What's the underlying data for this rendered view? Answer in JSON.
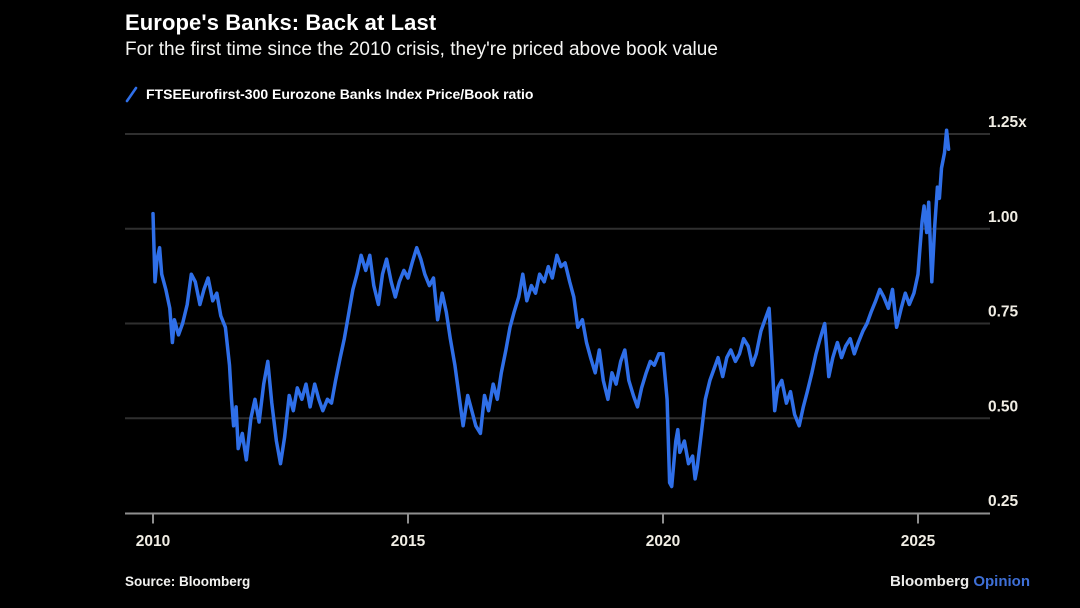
{
  "header": {
    "title": "Europe's Banks: Back at Last",
    "subtitle": "For the first time since the 2010 crisis, they're priced above book value"
  },
  "legend": {
    "series_label": "FTSEEurofirst-300 Eurozone Banks Index Price/Book ratio",
    "swatch_color": "#2F6FE8"
  },
  "footer": {
    "source": "Source: Bloomberg",
    "brand": "Bloomberg ",
    "brand_suffix": "Opinion",
    "brand_suffix_color": "#3E6FD6"
  },
  "colors": {
    "background": "#000000",
    "line": "#2F6FE8",
    "gridline": "#2F2F2F",
    "axis": "#8F8F8F",
    "tick_text": "#F0EDE4",
    "title_text": "#FFFFFF"
  },
  "chart_data": {
    "type": "line",
    "title": "Europe's Banks: Back at Last",
    "subtitle": "For the first time since the 2010 crisis, they're priced above book value",
    "xlabel": "",
    "ylabel": "Price/Book ratio",
    "unit_suffix": "x",
    "grid": "horizontal",
    "legend_position": "top-left",
    "xlim": [
      2009.45,
      2026.4
    ],
    "ylim": [
      0.25,
      1.25
    ],
    "x_ticks": [
      {
        "value": 2010,
        "label": "2010"
      },
      {
        "value": 2015,
        "label": "2015"
      },
      {
        "value": 2020,
        "label": "2020"
      },
      {
        "value": 2025,
        "label": "2025"
      }
    ],
    "y_ticks": [
      {
        "value": 0.25,
        "label": "0.25",
        "gridline": false
      },
      {
        "value": 0.5,
        "label": "0.50",
        "gridline": true
      },
      {
        "value": 0.75,
        "label": "0.75",
        "gridline": true
      },
      {
        "value": 1.0,
        "label": "1.00",
        "gridline": true
      },
      {
        "value": 1.25,
        "label": "1.25x",
        "gridline": true
      }
    ],
    "series": [
      {
        "name": "FTSEEurofirst-300 Eurozone Banks Index Price/Book ratio",
        "color": "#2F6FE8",
        "points": [
          [
            2010.0,
            1.04
          ],
          [
            2010.04,
            0.86
          ],
          [
            2010.08,
            0.92
          ],
          [
            2010.13,
            0.95
          ],
          [
            2010.17,
            0.88
          ],
          [
            2010.25,
            0.84
          ],
          [
            2010.33,
            0.79
          ],
          [
            2010.38,
            0.7
          ],
          [
            2010.42,
            0.76
          ],
          [
            2010.5,
            0.72
          ],
          [
            2010.58,
            0.75
          ],
          [
            2010.67,
            0.8
          ],
          [
            2010.75,
            0.88
          ],
          [
            2010.83,
            0.86
          ],
          [
            2010.92,
            0.8
          ],
          [
            2011.0,
            0.84
          ],
          [
            2011.08,
            0.87
          ],
          [
            2011.17,
            0.81
          ],
          [
            2011.25,
            0.83
          ],
          [
            2011.33,
            0.77
          ],
          [
            2011.42,
            0.74
          ],
          [
            2011.5,
            0.64
          ],
          [
            2011.54,
            0.55
          ],
          [
            2011.58,
            0.48
          ],
          [
            2011.63,
            0.53
          ],
          [
            2011.67,
            0.42
          ],
          [
            2011.75,
            0.46
          ],
          [
            2011.83,
            0.39
          ],
          [
            2011.92,
            0.5
          ],
          [
            2012.0,
            0.55
          ],
          [
            2012.08,
            0.49
          ],
          [
            2012.17,
            0.59
          ],
          [
            2012.25,
            0.65
          ],
          [
            2012.33,
            0.54
          ],
          [
            2012.42,
            0.44
          ],
          [
            2012.5,
            0.38
          ],
          [
            2012.58,
            0.45
          ],
          [
            2012.67,
            0.56
          ],
          [
            2012.75,
            0.52
          ],
          [
            2012.83,
            0.58
          ],
          [
            2012.92,
            0.55
          ],
          [
            2013.0,
            0.59
          ],
          [
            2013.08,
            0.53
          ],
          [
            2013.17,
            0.59
          ],
          [
            2013.25,
            0.55
          ],
          [
            2013.33,
            0.52
          ],
          [
            2013.42,
            0.55
          ],
          [
            2013.5,
            0.54
          ],
          [
            2013.58,
            0.6
          ],
          [
            2013.67,
            0.66
          ],
          [
            2013.75,
            0.71
          ],
          [
            2013.83,
            0.77
          ],
          [
            2013.92,
            0.84
          ],
          [
            2014.0,
            0.88
          ],
          [
            2014.08,
            0.93
          ],
          [
            2014.17,
            0.89
          ],
          [
            2014.25,
            0.93
          ],
          [
            2014.33,
            0.85
          ],
          [
            2014.42,
            0.8
          ],
          [
            2014.5,
            0.88
          ],
          [
            2014.58,
            0.92
          ],
          [
            2014.67,
            0.86
          ],
          [
            2014.75,
            0.82
          ],
          [
            2014.83,
            0.86
          ],
          [
            2014.92,
            0.89
          ],
          [
            2015.0,
            0.87
          ],
          [
            2015.08,
            0.91
          ],
          [
            2015.17,
            0.95
          ],
          [
            2015.25,
            0.92
          ],
          [
            2015.33,
            0.88
          ],
          [
            2015.42,
            0.85
          ],
          [
            2015.5,
            0.87
          ],
          [
            2015.58,
            0.76
          ],
          [
            2015.67,
            0.83
          ],
          [
            2015.75,
            0.78
          ],
          [
            2015.83,
            0.71
          ],
          [
            2015.92,
            0.64
          ],
          [
            2016.0,
            0.56
          ],
          [
            2016.08,
            0.48
          ],
          [
            2016.17,
            0.56
          ],
          [
            2016.25,
            0.52
          ],
          [
            2016.33,
            0.48
          ],
          [
            2016.42,
            0.46
          ],
          [
            2016.5,
            0.56
          ],
          [
            2016.58,
            0.52
          ],
          [
            2016.67,
            0.59
          ],
          [
            2016.75,
            0.55
          ],
          [
            2016.83,
            0.62
          ],
          [
            2016.92,
            0.68
          ],
          [
            2017.0,
            0.74
          ],
          [
            2017.08,
            0.78
          ],
          [
            2017.17,
            0.82
          ],
          [
            2017.25,
            0.88
          ],
          [
            2017.33,
            0.81
          ],
          [
            2017.42,
            0.85
          ],
          [
            2017.5,
            0.83
          ],
          [
            2017.58,
            0.88
          ],
          [
            2017.67,
            0.86
          ],
          [
            2017.75,
            0.9
          ],
          [
            2017.83,
            0.87
          ],
          [
            2017.92,
            0.93
          ],
          [
            2018.0,
            0.9
          ],
          [
            2018.08,
            0.91
          ],
          [
            2018.17,
            0.86
          ],
          [
            2018.25,
            0.82
          ],
          [
            2018.33,
            0.74
          ],
          [
            2018.42,
            0.76
          ],
          [
            2018.5,
            0.7
          ],
          [
            2018.58,
            0.66
          ],
          [
            2018.67,
            0.62
          ],
          [
            2018.75,
            0.68
          ],
          [
            2018.83,
            0.6
          ],
          [
            2018.92,
            0.55
          ],
          [
            2019.0,
            0.62
          ],
          [
            2019.08,
            0.59
          ],
          [
            2019.17,
            0.65
          ],
          [
            2019.25,
            0.68
          ],
          [
            2019.33,
            0.6
          ],
          [
            2019.42,
            0.56
          ],
          [
            2019.5,
            0.53
          ],
          [
            2019.58,
            0.58
          ],
          [
            2019.67,
            0.62
          ],
          [
            2019.75,
            0.65
          ],
          [
            2019.83,
            0.64
          ],
          [
            2019.92,
            0.67
          ],
          [
            2020.0,
            0.67
          ],
          [
            2020.08,
            0.55
          ],
          [
            2020.13,
            0.33
          ],
          [
            2020.17,
            0.32
          ],
          [
            2020.25,
            0.44
          ],
          [
            2020.29,
            0.47
          ],
          [
            2020.33,
            0.41
          ],
          [
            2020.42,
            0.44
          ],
          [
            2020.5,
            0.38
          ],
          [
            2020.58,
            0.4
          ],
          [
            2020.63,
            0.34
          ],
          [
            2020.67,
            0.37
          ],
          [
            2020.75,
            0.46
          ],
          [
            2020.83,
            0.55
          ],
          [
            2020.92,
            0.6
          ],
          [
            2021.0,
            0.63
          ],
          [
            2021.08,
            0.66
          ],
          [
            2021.17,
            0.61
          ],
          [
            2021.25,
            0.66
          ],
          [
            2021.33,
            0.68
          ],
          [
            2021.42,
            0.65
          ],
          [
            2021.5,
            0.67
          ],
          [
            2021.58,
            0.71
          ],
          [
            2021.67,
            0.69
          ],
          [
            2021.75,
            0.64
          ],
          [
            2021.83,
            0.67
          ],
          [
            2021.92,
            0.73
          ],
          [
            2022.0,
            0.76
          ],
          [
            2022.08,
            0.79
          ],
          [
            2022.15,
            0.62
          ],
          [
            2022.19,
            0.52
          ],
          [
            2022.25,
            0.58
          ],
          [
            2022.33,
            0.6
          ],
          [
            2022.42,
            0.54
          ],
          [
            2022.5,
            0.57
          ],
          [
            2022.58,
            0.51
          ],
          [
            2022.67,
            0.48
          ],
          [
            2022.75,
            0.53
          ],
          [
            2022.83,
            0.57
          ],
          [
            2022.92,
            0.62
          ],
          [
            2023.0,
            0.67
          ],
          [
            2023.08,
            0.71
          ],
          [
            2023.17,
            0.75
          ],
          [
            2023.25,
            0.61
          ],
          [
            2023.33,
            0.66
          ],
          [
            2023.42,
            0.7
          ],
          [
            2023.5,
            0.66
          ],
          [
            2023.58,
            0.69
          ],
          [
            2023.67,
            0.71
          ],
          [
            2023.75,
            0.67
          ],
          [
            2023.83,
            0.7
          ],
          [
            2023.92,
            0.73
          ],
          [
            2024.0,
            0.75
          ],
          [
            2024.08,
            0.78
          ],
          [
            2024.17,
            0.81
          ],
          [
            2024.25,
            0.84
          ],
          [
            2024.33,
            0.82
          ],
          [
            2024.42,
            0.79
          ],
          [
            2024.5,
            0.84
          ],
          [
            2024.58,
            0.74
          ],
          [
            2024.67,
            0.79
          ],
          [
            2024.75,
            0.83
          ],
          [
            2024.83,
            0.8
          ],
          [
            2024.92,
            0.83
          ],
          [
            2025.0,
            0.88
          ],
          [
            2025.04,
            0.95
          ],
          [
            2025.08,
            1.02
          ],
          [
            2025.12,
            1.06
          ],
          [
            2025.17,
            0.99
          ],
          [
            2025.21,
            1.07
          ],
          [
            2025.27,
            0.86
          ],
          [
            2025.33,
            1.01
          ],
          [
            2025.38,
            1.11
          ],
          [
            2025.42,
            1.08
          ],
          [
            2025.46,
            1.16
          ],
          [
            2025.52,
            1.2
          ],
          [
            2025.56,
            1.26
          ],
          [
            2025.6,
            1.21
          ]
        ]
      }
    ]
  }
}
